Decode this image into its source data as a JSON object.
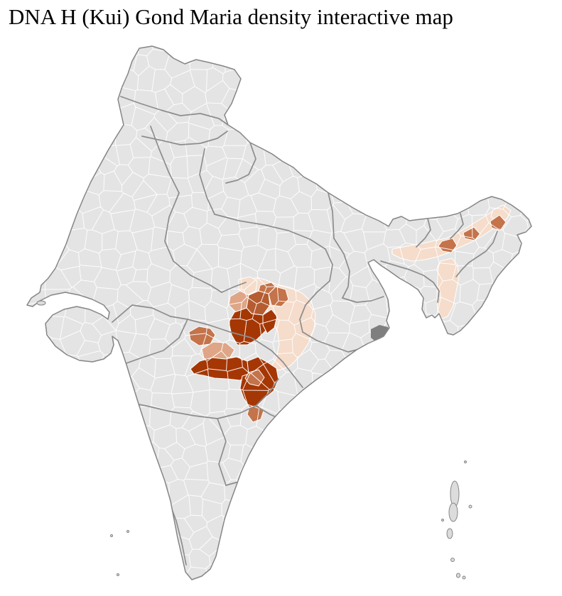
{
  "title": "DNA H (Kui) Gond Maria density interactive map",
  "map": {
    "label": "India district-level density choropleth",
    "colors": {
      "background": "#ffffff",
      "land": "#e4e4e4",
      "district_line": "#ffffff",
      "state_line": "#8d8d8d",
      "outline": "#858585",
      "river_delta": "#7f7f7f",
      "island": "#dcdcdc"
    },
    "density_levels": [
      {
        "name": "low",
        "color": "#f5dccb"
      },
      {
        "name": "medium_low",
        "color": "#dea687"
      },
      {
        "name": "medium",
        "color": "#c4734a"
      },
      {
        "name": "medium_high",
        "color": "#b55c30"
      },
      {
        "name": "high",
        "color": "#a53704"
      }
    ],
    "highlighted_regions": [
      {
        "id": "central-india-cluster",
        "density": "high-density core with medium and low-density fringe"
      },
      {
        "id": "brahmaputra-valley-strip",
        "density": "low-density strip with scattered medium-density districts"
      }
    ]
  }
}
